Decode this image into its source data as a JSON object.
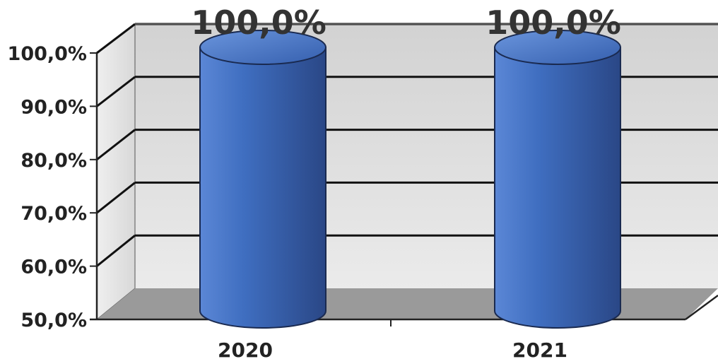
{
  "chart_data": {
    "type": "bar",
    "style": "3d-cylinder",
    "categories": [
      "2020",
      "2021"
    ],
    "series": [
      {
        "values": [
          100.0,
          100.0
        ]
      }
    ],
    "data_labels": [
      "100,0%",
      "100,0%"
    ],
    "ylim": [
      50,
      100
    ],
    "yticks": [
      50,
      60,
      70,
      80,
      90,
      100
    ],
    "ytick_labels": [
      "50,0%",
      "60,0%",
      "70,0%",
      "80,0%",
      "90,0%",
      "100,0%"
    ],
    "grid": true,
    "legend": "none",
    "colors": {
      "bar": "#3d69b8",
      "bar_dark": "#2a4786",
      "bar_light": "#5b87d6",
      "wall": "#dedede",
      "floor": "#9a9a9a"
    }
  }
}
